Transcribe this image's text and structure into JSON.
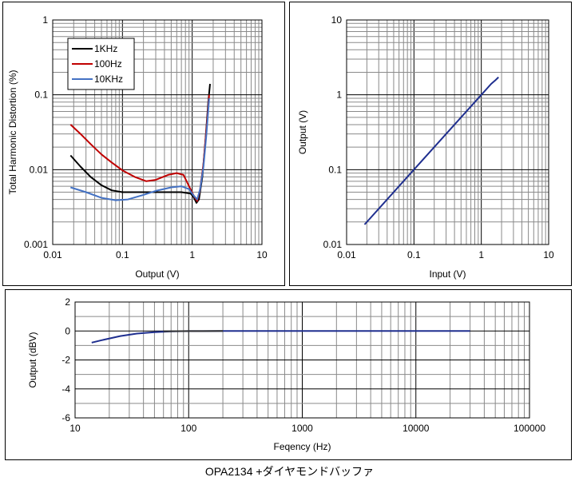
{
  "caption": "OPA2134 +ダイヤモンドバッファ",
  "chart_data": [
    {
      "type": "line",
      "xlabel": "Output (V)",
      "ylabel": "Total Harmonic Distortion (%)",
      "x_scale": "log",
      "y_scale": "log",
      "xlim": [
        0.01,
        10
      ],
      "ylim": [
        0.001,
        1
      ],
      "x_ticks": [
        "0.01",
        "0.1",
        "1",
        "10"
      ],
      "y_ticks": [
        "0.001",
        "0.01",
        "0.1",
        "1"
      ],
      "grid": true,
      "legend": "top-left",
      "series": [
        {
          "name": "1KHz",
          "color": "#000000",
          "points": [
            [
              0.018,
              0.0155
            ],
            [
              0.025,
              0.011
            ],
            [
              0.035,
              0.008
            ],
            [
              0.05,
              0.0062
            ],
            [
              0.07,
              0.0053
            ],
            [
              0.1,
              0.005
            ],
            [
              0.2,
              0.005
            ],
            [
              0.4,
              0.005
            ],
            [
              0.7,
              0.005
            ],
            [
              0.95,
              0.0048
            ],
            [
              1.05,
              0.0043
            ],
            [
              1.15,
              0.0036
            ],
            [
              1.25,
              0.004
            ],
            [
              1.4,
              0.008
            ],
            [
              1.55,
              0.025
            ],
            [
              1.7,
              0.08
            ],
            [
              1.8,
              0.14
            ]
          ]
        },
        {
          "name": "100Hz",
          "color": "#c00000",
          "points": [
            [
              0.018,
              0.04
            ],
            [
              0.025,
              0.03
            ],
            [
              0.035,
              0.022
            ],
            [
              0.05,
              0.016
            ],
            [
              0.07,
              0.0125
            ],
            [
              0.1,
              0.0098
            ],
            [
              0.15,
              0.008
            ],
            [
              0.22,
              0.007
            ],
            [
              0.3,
              0.0073
            ],
            [
              0.45,
              0.0085
            ],
            [
              0.6,
              0.009
            ],
            [
              0.75,
              0.0085
            ],
            [
              0.9,
              0.006
            ],
            [
              1.05,
              0.0045
            ],
            [
              1.18,
              0.0038
            ],
            [
              1.3,
              0.0055
            ],
            [
              1.45,
              0.012
            ],
            [
              1.6,
              0.035
            ],
            [
              1.75,
              0.1
            ]
          ]
        },
        {
          "name": "10KHz",
          "color": "#4472c4",
          "points": [
            [
              0.018,
              0.0058
            ],
            [
              0.03,
              0.005
            ],
            [
              0.05,
              0.0042
            ],
            [
              0.08,
              0.0039
            ],
            [
              0.12,
              0.004
            ],
            [
              0.2,
              0.0046
            ],
            [
              0.3,
              0.0052
            ],
            [
              0.5,
              0.0058
            ],
            [
              0.7,
              0.006
            ],
            [
              0.9,
              0.0055
            ],
            [
              1.05,
              0.0045
            ],
            [
              1.18,
              0.004
            ],
            [
              1.3,
              0.0055
            ],
            [
              1.45,
              0.011
            ],
            [
              1.6,
              0.03
            ],
            [
              1.75,
              0.09
            ]
          ]
        }
      ]
    },
    {
      "type": "line",
      "xlabel": "Input (V)",
      "ylabel": "Output (V)",
      "x_scale": "log",
      "y_scale": "log",
      "xlim": [
        0.01,
        10
      ],
      "ylim": [
        0.01,
        10
      ],
      "x_ticks": [
        "0.01",
        "0.1",
        "1",
        "10"
      ],
      "y_ticks": [
        "0.01",
        "0.1",
        "1",
        "10"
      ],
      "grid": true,
      "series": [
        {
          "color": "#1f2f8f",
          "points": [
            [
              0.0185,
              0.0185
            ],
            [
              0.1,
              0.1
            ],
            [
              1.0,
              1.0
            ],
            [
              1.4,
              1.4
            ],
            [
              1.6,
              1.55
            ],
            [
              1.8,
              1.72
            ]
          ]
        }
      ]
    },
    {
      "type": "line",
      "xlabel": "Feqency (Hz)",
      "ylabel": "Output (dBV)",
      "x_scale": "log",
      "xlim": [
        10,
        100000
      ],
      "ylim": [
        -6,
        2
      ],
      "x_ticks": [
        "10",
        "100",
        "1000",
        "10000",
        "100000"
      ],
      "y_ticks": [
        "2",
        "0",
        "-2",
        "-4",
        "-6"
      ],
      "grid": true,
      "series": [
        {
          "color": "#1f2f8f",
          "points": [
            [
              14,
              -0.8
            ],
            [
              18,
              -0.6
            ],
            [
              25,
              -0.35
            ],
            [
              35,
              -0.18
            ],
            [
              50,
              -0.08
            ],
            [
              70,
              -0.03
            ],
            [
              100,
              -0.01
            ],
            [
              200,
              0
            ],
            [
              1000,
              0
            ],
            [
              10000,
              0
            ],
            [
              30000,
              0
            ]
          ]
        },
        {
          "color": "#333333",
          "points": [
            [
              60,
              -0.02
            ],
            [
              100,
              -0.01
            ],
            [
              200,
              0
            ]
          ]
        }
      ]
    }
  ]
}
